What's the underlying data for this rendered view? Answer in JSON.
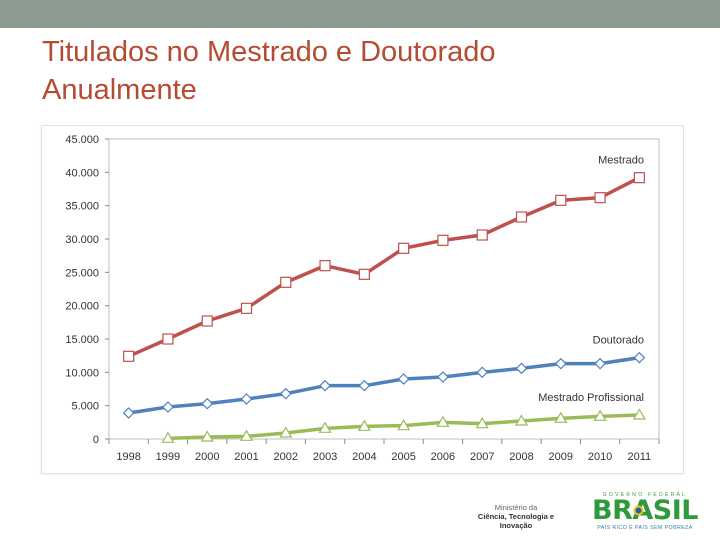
{
  "slide": {
    "title_line1": "Titulados no Mestrado e Doutorado",
    "title_line2": "Anualmente"
  },
  "chart_data": {
    "type": "line",
    "categories": [
      "1998",
      "1999",
      "2000",
      "2001",
      "2002",
      "2003",
      "2004",
      "2005",
      "2006",
      "2007",
      "2008",
      "2009",
      "2010",
      "2011"
    ],
    "ylim": [
      0,
      45000
    ],
    "yticks": [
      0,
      5000,
      10000,
      15000,
      20000,
      25000,
      30000,
      35000,
      40000,
      45000
    ],
    "ytick_labels": [
      "0",
      "5.000",
      "10.000",
      "15.000",
      "20.000",
      "25.000",
      "30.000",
      "35.000",
      "40.000",
      "45.000"
    ],
    "grid": false,
    "series": [
      {
        "name": "Mestrado",
        "color": "#c0504d",
        "marker": "square",
        "values": [
          12400,
          15000,
          17700,
          19600,
          23500,
          26000,
          24700,
          28600,
          29800,
          30600,
          33300,
          35800,
          36200,
          39200
        ]
      },
      {
        "name": "Doutorado",
        "color": "#4f81bd",
        "marker": "diamond",
        "values": [
          3900,
          4800,
          5300,
          6000,
          6800,
          8000,
          8000,
          9000,
          9300,
          10000,
          10600,
          11300,
          11300,
          12200
        ]
      },
      {
        "name": "Mestrado Profissional",
        "color": "#9bbb59",
        "marker": "triangle",
        "values": [
          null,
          100,
          300,
          400,
          900,
          1600,
          1900,
          2000,
          2500,
          2300,
          2700,
          3100,
          3400,
          3600
        ]
      }
    ]
  },
  "footer": {
    "ministry_line1": "Ministério da",
    "ministry_line2": "Ciência, Tecnologia e",
    "ministry_line3": "Inovação",
    "brasil_top": "GOVERNO FEDERAL",
    "brasil_word": "BRASIL",
    "brasil_slogan": "PAÍS RICO É PAÍS SEM POBREZA"
  }
}
